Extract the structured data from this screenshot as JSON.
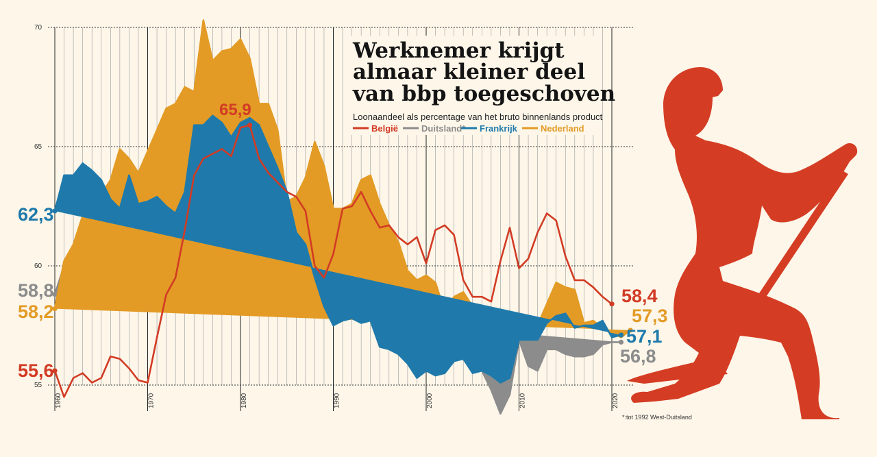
{
  "chart_data": {
    "type": "line",
    "title_lines": [
      "Werknemer krijgt",
      "almaar kleiner deel",
      "van bbp toegeschoven"
    ],
    "subtitle": "Loonaandeel als percentage van het bruto binnenlands product",
    "footnote": "*:tot 1992 West-Duitsland",
    "ylim": [
      55,
      70
    ],
    "y_ticks": [
      "55",
      "60",
      "65",
      "70"
    ],
    "x_start": 1960,
    "x_end": 2020,
    "x_ticks": [
      "1960",
      "1970",
      "1980",
      "1990",
      "2000",
      "2010",
      "2020"
    ],
    "series": [
      {
        "name": "Duitsland*",
        "color": "#8c8c8c",
        "start_label": "58,8",
        "end_label": "56,8",
        "values": [
          58.8,
          60.0,
          60.4,
          60.6,
          59.6,
          60.1,
          60.6,
          59.9,
          59.3,
          58.8,
          61.2,
          61.6,
          62.4,
          63.4,
          64.5,
          64.1,
          63.4,
          63.5,
          63.4,
          62.8,
          63.8,
          63.8,
          63.0,
          61.7,
          61.1,
          60.7,
          60.5,
          61.4,
          61.5,
          59.3,
          58.8,
          59.0,
          60.5,
          60.3,
          59.1,
          59.2,
          58.9,
          58.0,
          57.5,
          57.2,
          57.5,
          58.2,
          57.4,
          57.1,
          57.1,
          56.3,
          55.6,
          54.8,
          53.8,
          54.6,
          56.9,
          55.8,
          55.6,
          56.5,
          56.5,
          56.3,
          56.2,
          56.2,
          56.3,
          56.7,
          56.8,
          56.8
        ]
      },
      {
        "name": "Nederland",
        "color": "#e39b25",
        "start_label": "58,2",
        "end_label": "57,3",
        "values": [
          58.2,
          60.2,
          60.9,
          62.1,
          62.6,
          63.0,
          63.6,
          64.9,
          64.5,
          63.9,
          64.8,
          65.7,
          66.6,
          66.8,
          67.5,
          67.3,
          70.3,
          68.6,
          69.0,
          69.1,
          69.5,
          68.7,
          66.8,
          66.8,
          65.7,
          62.7,
          62.9,
          63.7,
          65.2,
          64.2,
          62.4,
          62.4,
          62.6,
          63.6,
          63.8,
          62.6,
          61.7,
          61.0,
          59.8,
          59.4,
          59.6,
          59.3,
          58.1,
          58.7,
          58.9,
          58.3,
          57.3,
          55.6,
          55.5,
          56.1,
          57.9,
          57.0,
          57.5,
          58.4,
          59.3,
          59.1,
          59.0,
          57.6,
          57.7,
          57.4,
          57.2,
          57.0,
          57.3
        ]
      },
      {
        "name": "Frankrijk",
        "color": "#1f7aab",
        "start_label": "62,3",
        "end_label": "57,1",
        "values": [
          62.3,
          63.8,
          63.8,
          64.3,
          64.0,
          63.6,
          62.8,
          62.4,
          63.8,
          62.6,
          62.7,
          62.9,
          62.5,
          62.2,
          63.1,
          65.9,
          65.9,
          66.3,
          66.0,
          65.4,
          66.0,
          66.2,
          65.9,
          65.0,
          64.1,
          63.1,
          61.4,
          60.9,
          59.5,
          58.3,
          57.5,
          57.7,
          57.8,
          57.6,
          57.7,
          56.6,
          56.5,
          56.3,
          55.9,
          55.3,
          55.6,
          55.4,
          55.5,
          56.0,
          56.1,
          55.5,
          55.6,
          55.4,
          55.1,
          55.3,
          56.9,
          56.9,
          56.9,
          57.6,
          57.9,
          58.0,
          57.4,
          57.5,
          57.5,
          57.7,
          57.0,
          57.1
        ]
      },
      {
        "name": "België",
        "color": "#d23b24",
        "start_label": "55,6",
        "end_label": "58,4",
        "values": [
          55.6,
          54.5,
          55.3,
          55.5,
          55.1,
          55.3,
          56.2,
          56.1,
          55.7,
          55.2,
          55.1,
          57.0,
          58.8,
          59.5,
          61.5,
          63.8,
          64.5,
          64.7,
          64.9,
          64.6,
          65.8,
          65.9,
          64.5,
          63.9,
          63.5,
          63.1,
          62.9,
          62.3,
          60.0,
          59.5,
          60.5,
          62.4,
          62.5,
          63.1,
          62.3,
          61.6,
          61.7,
          61.2,
          60.9,
          61.2,
          60.1,
          61.5,
          61.7,
          61.3,
          59.4,
          58.7,
          58.7,
          58.5,
          60.2,
          61.6,
          59.9,
          60.3,
          61.4,
          62.2,
          61.9,
          60.4,
          59.4,
          59.4,
          59.1,
          58.7,
          58.4
        ]
      }
    ]
  }
}
